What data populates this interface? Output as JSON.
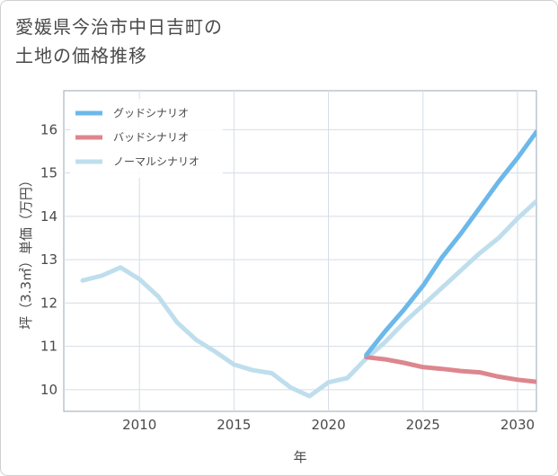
{
  "title_lines": [
    "愛媛県今治市中日吉町の",
    "土地の価格推移"
  ],
  "chart_data": {
    "type": "line",
    "title": "愛媛県今治市中日吉町の土地の価格推移",
    "xlabel": "年",
    "ylabel": "坪（3.3㎡）単価（万円）",
    "xlim": [
      2006,
      2031
    ],
    "ylim": [
      9.5,
      16.9
    ],
    "xticks": [
      2010,
      2015,
      2020,
      2025,
      2030
    ],
    "yticks": [
      10,
      11,
      12,
      13,
      14,
      15,
      16
    ],
    "grid": true,
    "legend_position": "top-left",
    "series": [
      {
        "name": "グッドシナリオ",
        "color": "#6cb8ea",
        "x": [
          2022,
          2023,
          2024,
          2025,
          2026,
          2027,
          2028,
          2029,
          2030,
          2031
        ],
        "values": [
          10.8,
          11.35,
          11.85,
          12.4,
          13.05,
          13.6,
          14.2,
          14.8,
          15.35,
          15.95
        ]
      },
      {
        "name": "バッドシナリオ",
        "color": "#dd868e",
        "x": [
          2022,
          2023,
          2024,
          2025,
          2026,
          2027,
          2028,
          2029,
          2030,
          2031
        ],
        "values": [
          10.75,
          10.7,
          10.62,
          10.52,
          10.48,
          10.43,
          10.4,
          10.3,
          10.23,
          10.18
        ]
      },
      {
        "name": "ノーマルシナリオ",
        "color": "#bfdeed",
        "x": [
          2007,
          2008,
          2009,
          2010,
          2011,
          2012,
          2013,
          2014,
          2015,
          2016,
          2017,
          2018,
          2019,
          2020,
          2021,
          2022,
          2023,
          2024,
          2025,
          2026,
          2027,
          2028,
          2029,
          2030,
          2031
        ],
        "values": [
          12.52,
          12.63,
          12.82,
          12.55,
          12.15,
          11.55,
          11.15,
          10.88,
          10.58,
          10.45,
          10.38,
          10.05,
          9.85,
          10.17,
          10.27,
          10.72,
          11.1,
          11.55,
          11.95,
          12.35,
          12.75,
          13.15,
          13.5,
          13.95,
          14.35
        ]
      }
    ]
  }
}
